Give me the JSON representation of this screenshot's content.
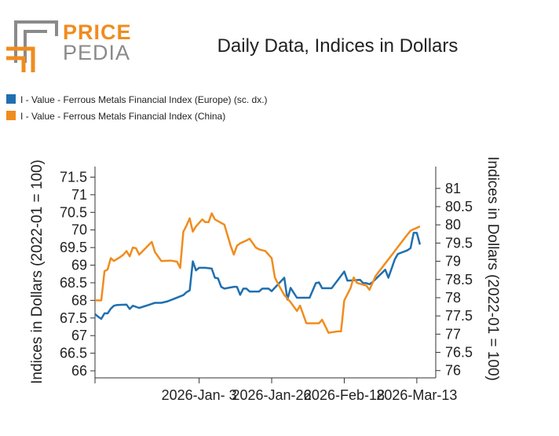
{
  "logo": {
    "line1": "PRICE",
    "line2": "PEDIA",
    "accent": "#f08c1e",
    "gray": "#8a8a8a"
  },
  "chart_data": {
    "type": "line",
    "title": "Daily Data, Indices in Dollars",
    "left_axis": {
      "label": "Indices in Dollars (2022-01 = 100)",
      "ylim": [
        65.8,
        71.8
      ],
      "ticks": [
        66,
        66.5,
        67,
        67.5,
        68,
        68.5,
        69,
        69.5,
        70,
        70.5,
        71,
        71.5
      ]
    },
    "right_axis": {
      "label": "Indices in Dollars (2022-01 = 100)",
      "ylim": [
        75.8,
        81.6
      ],
      "ticks": [
        76,
        76.5,
        77,
        77.5,
        78,
        78.5,
        79,
        79.5,
        80,
        80.5,
        81
      ]
    },
    "x_axis": {
      "start": "2025-12-01",
      "end": "2026-03-19",
      "tick_labels": [
        "2026-Jan- 3",
        "2026-Jan-26",
        "2026-Feb-18",
        "2026-Mar-13"
      ]
    },
    "series": [
      {
        "name": "I - Value - Ferrous Metals Financial Index (Europe) (sc. dx.)",
        "color": "#1f6fb0",
        "axis": "right",
        "points": [
          [
            "2025-12-01",
            77.55
          ],
          [
            "2025-12-02",
            77.48
          ],
          [
            "2025-12-03",
            77.42
          ],
          [
            "2025-12-04",
            77.57
          ],
          [
            "2025-12-05",
            77.57
          ],
          [
            "2025-12-06",
            77.7
          ],
          [
            "2025-12-07",
            77.78
          ],
          [
            "2025-12-08",
            77.8
          ],
          [
            "2025-12-11",
            77.81
          ],
          [
            "2025-12-12",
            77.69
          ],
          [
            "2025-12-13",
            77.78
          ],
          [
            "2025-12-15",
            77.72
          ],
          [
            "2025-12-18",
            77.8
          ],
          [
            "2025-12-19",
            77.83
          ],
          [
            "2025-12-20",
            77.86
          ],
          [
            "2025-12-22",
            77.86
          ],
          [
            "2025-12-24",
            77.9
          ],
          [
            "2025-12-26",
            77.97
          ],
          [
            "2025-12-29",
            78.07
          ],
          [
            "2025-12-30",
            78.15
          ],
          [
            "2025-12-31",
            78.2
          ],
          [
            "2026-01-01",
            79.0
          ],
          [
            "2026-01-02",
            78.75
          ],
          [
            "2026-01-03",
            78.82
          ],
          [
            "2026-01-05",
            78.82
          ],
          [
            "2026-01-07",
            78.8
          ],
          [
            "2026-01-08",
            78.55
          ],
          [
            "2026-01-09",
            78.53
          ],
          [
            "2026-01-10",
            78.3
          ],
          [
            "2026-01-11",
            78.25
          ],
          [
            "2026-01-14",
            78.3
          ],
          [
            "2026-01-15",
            78.3
          ],
          [
            "2026-01-16",
            78.08
          ],
          [
            "2026-01-17",
            78.25
          ],
          [
            "2026-01-18",
            78.25
          ],
          [
            "2026-01-19",
            78.17
          ],
          [
            "2026-01-22",
            78.17
          ],
          [
            "2026-01-23",
            78.25
          ],
          [
            "2026-01-25",
            78.25
          ],
          [
            "2026-01-26",
            78.18
          ],
          [
            "2026-01-30",
            78.55
          ],
          [
            "2026-01-31",
            77.95
          ],
          [
            "2026-02-01",
            78.27
          ],
          [
            "2026-02-03",
            78.0
          ],
          [
            "2026-02-07",
            78.0
          ],
          [
            "2026-02-09",
            78.4
          ],
          [
            "2026-02-10",
            78.42
          ],
          [
            "2026-02-11",
            78.26
          ],
          [
            "2026-02-14",
            78.26
          ],
          [
            "2026-02-18",
            78.72
          ],
          [
            "2026-02-19",
            78.47
          ],
          [
            "2026-02-23",
            78.49
          ],
          [
            "2026-02-24",
            78.4
          ],
          [
            "2026-02-25",
            78.4
          ],
          [
            "2026-02-26",
            78.37
          ],
          [
            "2026-02-27",
            78.43
          ],
          [
            "2026-03-03",
            78.77
          ],
          [
            "2026-03-04",
            78.55
          ],
          [
            "2026-03-06",
            79.05
          ],
          [
            "2026-03-07",
            79.2
          ],
          [
            "2026-03-10",
            79.3
          ],
          [
            "2026-03-11",
            79.36
          ],
          [
            "2026-03-12",
            79.78
          ],
          [
            "2026-03-13",
            79.78
          ],
          [
            "2026-03-14",
            79.46
          ]
        ]
      },
      {
        "name": "I - Value - Ferrous Metals Financial Index (China)",
        "color": "#f08c1e",
        "axis": "left",
        "points": [
          [
            "2025-12-01",
            68.0
          ],
          [
            "2025-12-03",
            68.0
          ],
          [
            "2025-12-04",
            68.83
          ],
          [
            "2025-12-05",
            68.88
          ],
          [
            "2025-12-06",
            69.2
          ],
          [
            "2025-12-07",
            69.12
          ],
          [
            "2025-12-09",
            69.23
          ],
          [
            "2025-12-10",
            69.3
          ],
          [
            "2025-12-11",
            69.4
          ],
          [
            "2025-12-12",
            69.25
          ],
          [
            "2025-12-13",
            69.5
          ],
          [
            "2025-12-14",
            69.48
          ],
          [
            "2025-12-15",
            69.3
          ],
          [
            "2025-12-19",
            69.66
          ],
          [
            "2025-12-20",
            69.37
          ],
          [
            "2025-12-22",
            69.12
          ],
          [
            "2025-12-25",
            69.13
          ],
          [
            "2025-12-27",
            69.1
          ],
          [
            "2025-12-28",
            68.92
          ],
          [
            "2025-12-29",
            69.95
          ],
          [
            "2025-12-30",
            70.12
          ],
          [
            "2025-12-31",
            70.33
          ],
          [
            "2026-01-01",
            69.95
          ],
          [
            "2026-01-02",
            70.1
          ],
          [
            "2026-01-04",
            70.3
          ],
          [
            "2026-01-05",
            70.22
          ],
          [
            "2026-01-06",
            70.22
          ],
          [
            "2026-01-07",
            70.47
          ],
          [
            "2026-01-08",
            70.3
          ],
          [
            "2026-01-11",
            70.15
          ],
          [
            "2026-01-13",
            69.55
          ],
          [
            "2026-01-14",
            69.3
          ],
          [
            "2026-01-15",
            69.55
          ],
          [
            "2026-01-16",
            69.62
          ],
          [
            "2026-01-18",
            69.7
          ],
          [
            "2026-01-19",
            69.75
          ],
          [
            "2026-01-21",
            69.5
          ],
          [
            "2026-01-22",
            69.45
          ],
          [
            "2026-01-24",
            69.4
          ],
          [
            "2026-01-26",
            69.2
          ],
          [
            "2026-01-27",
            68.65
          ],
          [
            "2026-01-28",
            68.47
          ],
          [
            "2026-01-30",
            68.15
          ],
          [
            "2026-02-01",
            67.95
          ],
          [
            "2026-02-03",
            67.7
          ],
          [
            "2026-02-04",
            67.85
          ],
          [
            "2026-02-06",
            67.35
          ],
          [
            "2026-02-10",
            67.35
          ],
          [
            "2026-02-11",
            67.45
          ],
          [
            "2026-02-13",
            67.08
          ],
          [
            "2026-02-16",
            67.12
          ],
          [
            "2026-02-17",
            67.12
          ],
          [
            "2026-02-18",
            68.0
          ],
          [
            "2026-02-20",
            68.35
          ],
          [
            "2026-02-21",
            68.65
          ],
          [
            "2026-02-22",
            68.5
          ],
          [
            "2026-02-23",
            68.47
          ],
          [
            "2026-02-25",
            68.42
          ],
          [
            "2026-02-26",
            68.3
          ],
          [
            "2026-02-28",
            68.7
          ],
          [
            "2026-03-03",
            69.05
          ],
          [
            "2026-03-06",
            69.4
          ],
          [
            "2026-03-09",
            69.75
          ],
          [
            "2026-03-11",
            69.98
          ],
          [
            "2026-03-14",
            70.1
          ]
        ]
      }
    ]
  }
}
